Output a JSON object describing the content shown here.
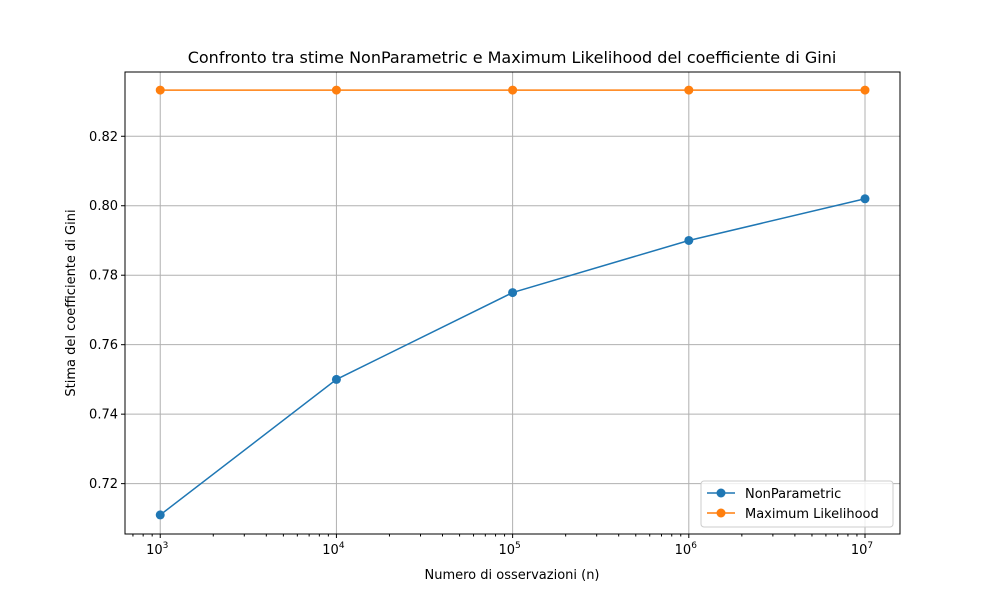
{
  "chart_data": {
    "type": "line",
    "title": "Confronto tra stime NonParametric e Maximum Likelihood del coefficiente di Gini",
    "xlabel": "Numero di osservazioni (n)",
    "ylabel": "Stima del coefficiente di Gini",
    "x_scale": "log",
    "x": [
      1000,
      10000,
      100000,
      1000000,
      10000000
    ],
    "x_tick_exponents": [
      "3",
      "4",
      "5",
      "6",
      "7"
    ],
    "x_tick_base": "10",
    "xlim": [
      631,
      15800000
    ],
    "ylim": [
      0.7055,
      0.8385
    ],
    "y_ticks": [
      "0.72",
      "0.74",
      "0.76",
      "0.78",
      "0.80",
      "0.82"
    ],
    "grid": true,
    "legend_position": "lower-right",
    "series": [
      {
        "name": "NonParametric",
        "values": [
          0.711,
          0.75,
          0.775,
          0.79,
          0.802
        ],
        "color": "#1f77b4"
      },
      {
        "name": "Maximum Likelihood",
        "values": [
          0.8333,
          0.8333,
          0.8333,
          0.8333,
          0.8333
        ],
        "color": "#ff7f0e"
      }
    ]
  }
}
